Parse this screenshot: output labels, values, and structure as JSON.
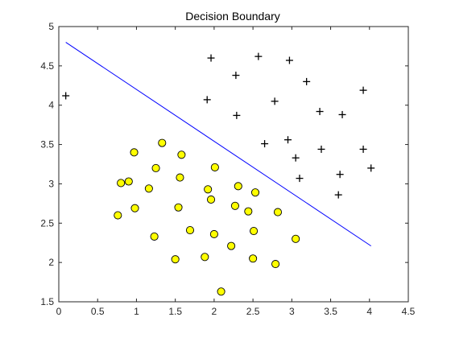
{
  "chart_data": {
    "type": "scatter",
    "title": "Decision Boundary",
    "xlabel": "",
    "ylabel": "",
    "xlim": [
      0,
      4.5
    ],
    "ylim": [
      1.5,
      5
    ],
    "xticks": [
      0,
      0.5,
      1,
      1.5,
      2,
      2.5,
      3,
      3.5,
      4,
      4.5
    ],
    "yticks": [
      1.5,
      2,
      2.5,
      3,
      3.5,
      4,
      4.5,
      5
    ],
    "xtick_labels": [
      "0",
      "0.5",
      "1",
      "1.5",
      "2",
      "2.5",
      "3",
      "3.5",
      "4",
      "4.5"
    ],
    "ytick_labels": [
      "1.5",
      "2",
      "2.5",
      "3",
      "3.5",
      "4",
      "4.5",
      "5"
    ],
    "grid": false,
    "series": [
      {
        "marker": "plus",
        "color": "#000000",
        "points": [
          [
            0.09,
            4.12
          ],
          [
            1.96,
            4.6
          ],
          [
            2.57,
            4.62
          ],
          [
            2.97,
            4.57
          ],
          [
            2.28,
            4.38
          ],
          [
            3.19,
            4.3
          ],
          [
            3.92,
            4.19
          ],
          [
            1.91,
            4.07
          ],
          [
            2.78,
            4.05
          ],
          [
            3.36,
            3.92
          ],
          [
            3.65,
            3.88
          ],
          [
            2.29,
            3.87
          ],
          [
            2.95,
            3.56
          ],
          [
            2.65,
            3.51
          ],
          [
            3.38,
            3.44
          ],
          [
            3.92,
            3.44
          ],
          [
            3.05,
            3.33
          ],
          [
            4.02,
            3.2
          ],
          [
            3.62,
            3.12
          ],
          [
            3.1,
            3.07
          ],
          [
            3.6,
            2.86
          ]
        ]
      },
      {
        "marker": "circle",
        "color": "#ffff00",
        "edgecolor": "#000000",
        "points": [
          [
            1.33,
            3.52
          ],
          [
            0.97,
            3.4
          ],
          [
            1.58,
            3.37
          ],
          [
            1.25,
            3.2
          ],
          [
            2.01,
            3.21
          ],
          [
            1.56,
            3.08
          ],
          [
            0.8,
            3.01
          ],
          [
            0.9,
            3.03
          ],
          [
            1.16,
            2.94
          ],
          [
            2.31,
            2.97
          ],
          [
            1.92,
            2.93
          ],
          [
            2.53,
            2.89
          ],
          [
            1.96,
            2.8
          ],
          [
            0.98,
            2.69
          ],
          [
            1.54,
            2.7
          ],
          [
            2.27,
            2.72
          ],
          [
            2.44,
            2.65
          ],
          [
            2.82,
            2.64
          ],
          [
            0.76,
            2.6
          ],
          [
            1.69,
            2.41
          ],
          [
            2.51,
            2.4
          ],
          [
            2.0,
            2.36
          ],
          [
            1.23,
            2.33
          ],
          [
            3.05,
            2.3
          ],
          [
            2.22,
            2.21
          ],
          [
            1.88,
            2.07
          ],
          [
            1.5,
            2.04
          ],
          [
            2.5,
            2.05
          ],
          [
            2.79,
            1.98
          ],
          [
            2.09,
            1.63
          ]
        ]
      },
      {
        "marker": "line",
        "color": "#0000ff",
        "points": [
          [
            0.09,
            4.8
          ],
          [
            4.02,
            2.21
          ]
        ]
      }
    ]
  }
}
